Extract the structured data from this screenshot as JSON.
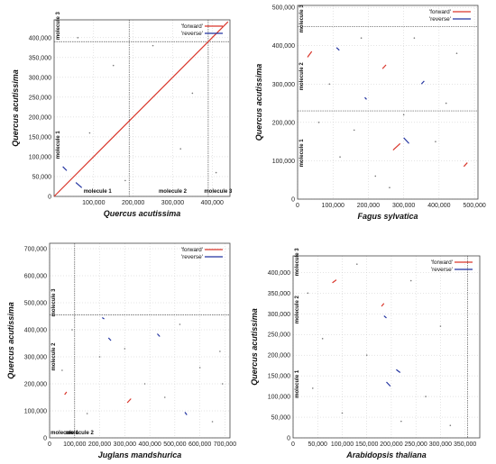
{
  "chart_data": [
    {
      "type": "scatter",
      "xlabel": "Quercus acutissima",
      "ylabel": "Quercus acutissima",
      "xlim": [
        0,
        445000
      ],
      "ylim": [
        0,
        445000
      ],
      "x_ticks": [
        100000,
        200000,
        300000,
        400000
      ],
      "x_tick_labels": [
        "100,000",
        "200,000",
        "300,000",
        "400,000"
      ],
      "y_ticks": [
        0,
        50000,
        100000,
        150000,
        200000,
        250000,
        300000,
        350000,
        400000
      ],
      "y_tick_labels": [
        "0",
        "50,000",
        "100,000",
        "150,000",
        "200,000",
        "250,000",
        "300,000",
        "350,000",
        "400,000"
      ],
      "x_molecules": [
        {
          "label": "molecule 1",
          "center": 110000
        },
        {
          "label": "molecule 2",
          "center": 300000
        },
        {
          "label": "molecule 3",
          "center": 415000
        }
      ],
      "x_boundaries": [
        190000,
        390000
      ],
      "y_molecules": [
        {
          "label": "molecule 1",
          "center": 130000
        },
        {
          "label": "molecule 3",
          "center": 430000
        }
      ],
      "y_boundaries": [
        390000
      ],
      "legend": {
        "forward": "'forward'",
        "reverse": "'reverse'",
        "position": "top-right"
      },
      "colors": {
        "forward": "#d9362b",
        "reverse": "#2233a0"
      },
      "grid": true,
      "segments": [
        {
          "x1": 0,
          "y1": 0,
          "x2": 440000,
          "y2": 440000,
          "dir": "forward"
        },
        {
          "x1": 22000,
          "y1": 75000,
          "x2": 32000,
          "y2": 65000,
          "dir": "reverse"
        },
        {
          "x1": 55000,
          "y1": 35000,
          "x2": 70000,
          "y2": 22000,
          "dir": "reverse"
        }
      ],
      "dots": [
        [
          60000,
          400000
        ],
        [
          150000,
          330000
        ],
        [
          250000,
          380000
        ],
        [
          320000,
          120000
        ],
        [
          90000,
          160000
        ],
        [
          410000,
          60000
        ],
        [
          180000,
          40000
        ],
        [
          350000,
          260000
        ]
      ]
    },
    {
      "type": "scatter",
      "xlabel": "Fagus sylvatica",
      "ylabel": "Quercus acutissima",
      "xlim": [
        0,
        510000
      ],
      "ylim": [
        0,
        505000
      ],
      "x_ticks": [
        0,
        100000,
        200000,
        300000,
        400000,
        500000
      ],
      "x_tick_labels": [
        "0",
        "100,000",
        "200,000",
        "300,000",
        "400,000",
        "500,000"
      ],
      "y_ticks": [
        0,
        100000,
        200000,
        300000,
        400000,
        500000
      ],
      "y_tick_labels": [
        "0",
        "100,000",
        "200,000",
        "300,000",
        "400,000",
        "500,000"
      ],
      "x_molecules": [],
      "x_boundaries": [],
      "y_molecules": [
        {
          "label": "molecule 1",
          "center": 120000
        },
        {
          "label": "molecule 2",
          "center": 320000
        },
        {
          "label": "molecule 3",
          "center": 470000
        }
      ],
      "y_boundaries": [
        230000,
        450000
      ],
      "legend": {
        "forward": "'forward'",
        "reverse": "'reverse'",
        "position": "top-right"
      },
      "colors": {
        "forward": "#d9362b",
        "reverse": "#2233a0"
      },
      "grid": true,
      "segments": [
        {
          "x1": 28000,
          "y1": 370000,
          "x2": 40000,
          "y2": 385000,
          "dir": "forward"
        },
        {
          "x1": 270000,
          "y1": 128000,
          "x2": 290000,
          "y2": 145000,
          "dir": "forward"
        },
        {
          "x1": 300000,
          "y1": 160000,
          "x2": 315000,
          "y2": 145000,
          "dir": "reverse"
        },
        {
          "x1": 240000,
          "y1": 340000,
          "x2": 250000,
          "y2": 350000,
          "dir": "forward"
        },
        {
          "x1": 470000,
          "y1": 85000,
          "x2": 480000,
          "y2": 95000,
          "dir": "forward"
        },
        {
          "x1": 350000,
          "y1": 300000,
          "x2": 358000,
          "y2": 308000,
          "dir": "reverse"
        },
        {
          "x1": 190000,
          "y1": 265000,
          "x2": 195000,
          "y2": 260000,
          "dir": "reverse"
        },
        {
          "x1": 110000,
          "y1": 395000,
          "x2": 118000,
          "y2": 388000,
          "dir": "reverse"
        }
      ],
      "dots": [
        [
          60000,
          200000
        ],
        [
          120000,
          110000
        ],
        [
          180000,
          420000
        ],
        [
          220000,
          60000
        ],
        [
          330000,
          420000
        ],
        [
          390000,
          150000
        ],
        [
          420000,
          250000
        ],
        [
          450000,
          380000
        ],
        [
          90000,
          300000
        ],
        [
          260000,
          30000
        ],
        [
          160000,
          180000
        ],
        [
          300000,
          220000
        ]
      ]
    },
    {
      "type": "scatter",
      "xlabel": "Juglans mandshurica",
      "ylabel": "Quercus acutissima",
      "xlim": [
        0,
        720000
      ],
      "ylim": [
        0,
        720000
      ],
      "x_ticks": [
        0,
        100000,
        200000,
        300000,
        400000,
        500000,
        600000,
        700000
      ],
      "x_tick_labels": [
        "0",
        "100,000",
        "200,000",
        "300,000",
        "400,000",
        "500,000",
        "600,000",
        "700,000"
      ],
      "y_ticks": [
        0,
        100000,
        200000,
        300000,
        400000,
        500000,
        600000,
        700000
      ],
      "y_tick_labels": [
        "0",
        "100,000",
        "200,000",
        "300,000",
        "400,000",
        "500,000",
        "600,000",
        "700,000"
      ],
      "x_molecules": [
        {
          "label": "molecule 1",
          "center": 60000
        },
        {
          "label": "molecule 2",
          "center": 120000
        }
      ],
      "x_boundaries": [
        100000
      ],
      "y_molecules": [
        {
          "label": "molecule 2",
          "center": 300000
        },
        {
          "label": "molecule 3",
          "center": 500000
        }
      ],
      "y_boundaries": [
        455000
      ],
      "legend": {
        "forward": "'forward'",
        "reverse": "'reverse'",
        "position": "top-right"
      },
      "colors": {
        "forward": "#d9362b",
        "reverse": "#2233a0"
      },
      "grid": true,
      "segments": [
        {
          "x1": 310000,
          "y1": 130000,
          "x2": 325000,
          "y2": 145000,
          "dir": "forward"
        },
        {
          "x1": 60000,
          "y1": 160000,
          "x2": 68000,
          "y2": 170000,
          "dir": "forward"
        },
        {
          "x1": 430000,
          "y1": 385000,
          "x2": 440000,
          "y2": 375000,
          "dir": "reverse"
        },
        {
          "x1": 235000,
          "y1": 370000,
          "x2": 245000,
          "y2": 360000,
          "dir": "reverse"
        },
        {
          "x1": 210000,
          "y1": 445000,
          "x2": 218000,
          "y2": 440000,
          "dir": "reverse"
        },
        {
          "x1": 540000,
          "y1": 95000,
          "x2": 548000,
          "y2": 85000,
          "dir": "reverse"
        }
      ],
      "dots": [
        [
          50000,
          250000
        ],
        [
          150000,
          90000
        ],
        [
          200000,
          300000
        ],
        [
          380000,
          200000
        ],
        [
          460000,
          150000
        ],
        [
          600000,
          260000
        ],
        [
          680000,
          320000
        ],
        [
          650000,
          60000
        ],
        [
          90000,
          400000
        ],
        [
          520000,
          420000
        ],
        [
          300000,
          330000
        ],
        [
          690000,
          200000
        ]
      ]
    },
    {
      "type": "scatter",
      "xlabel": "Arabidopsis thaliana",
      "ylabel": "Quercus acutissima",
      "xlim": [
        0,
        380000
      ],
      "ylim": [
        0,
        440000
      ],
      "x_ticks": [
        0,
        50000,
        100000,
        150000,
        200000,
        250000,
        300000,
        350000
      ],
      "x_tick_labels": [
        "0",
        "50,000",
        "100,000",
        "150,000",
        "200,000",
        "250,000",
        "300,000",
        "350,000"
      ],
      "y_ticks": [
        0,
        50000,
        100000,
        150000,
        200000,
        250000,
        300000,
        350000,
        400000
      ],
      "y_tick_labels": [
        "0",
        "50,000",
        "100,000",
        "150,000",
        "200,000",
        "250,000",
        "300,000",
        "350,000",
        "400,000"
      ],
      "x_molecules": [],
      "x_boundaries": [
        355000
      ],
      "y_molecules": [
        {
          "label": "molecule 1",
          "center": 130000
        },
        {
          "label": "molecule 2",
          "center": 310000
        },
        {
          "label": "molecule 3",
          "center": 425000
        }
      ],
      "y_boundaries": [],
      "legend": {
        "forward": "'forward'",
        "reverse": "'reverse'",
        "position": "top-right"
      },
      "colors": {
        "forward": "#d9362b",
        "reverse": "#2233a0"
      },
      "grid": true,
      "segments": [
        {
          "x1": 80000,
          "y1": 375000,
          "x2": 88000,
          "y2": 382000,
          "dir": "forward"
        },
        {
          "x1": 180000,
          "y1": 318000,
          "x2": 185000,
          "y2": 325000,
          "dir": "forward"
        },
        {
          "x1": 190000,
          "y1": 135000,
          "x2": 198000,
          "y2": 125000,
          "dir": "reverse"
        },
        {
          "x1": 210000,
          "y1": 165000,
          "x2": 218000,
          "y2": 158000,
          "dir": "reverse"
        },
        {
          "x1": 185000,
          "y1": 295000,
          "x2": 190000,
          "y2": 290000,
          "dir": "reverse"
        }
      ],
      "dots": [
        [
          30000,
          350000
        ],
        [
          60000,
          240000
        ],
        [
          100000,
          60000
        ],
        [
          130000,
          420000
        ],
        [
          150000,
          200000
        ],
        [
          240000,
          380000
        ],
        [
          270000,
          100000
        ],
        [
          300000,
          270000
        ],
        [
          320000,
          30000
        ],
        [
          40000,
          120000
        ],
        [
          220000,
          40000
        ]
      ]
    }
  ]
}
